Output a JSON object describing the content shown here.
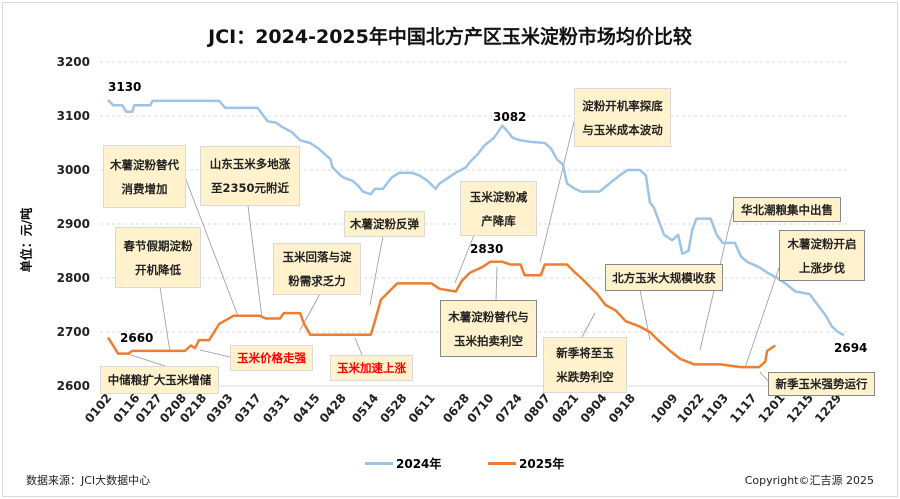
{
  "chart_data": {
    "type": "line",
    "title": "JCI：2024-2025年中国北方产区玉米淀粉市场均价比较",
    "ylabel": "单位：元/吨",
    "ylim": [
      2600,
      3200
    ],
    "yticks": [
      2600,
      2700,
      2800,
      2900,
      3000,
      3100,
      3200
    ],
    "xlim": [
      2,
      366
    ],
    "xticks": [
      {
        "label": "0102",
        "day": 2
      },
      {
        "label": "0116",
        "day": 16
      },
      {
        "label": "0127",
        "day": 27
      },
      {
        "label": "0208",
        "day": 39
      },
      {
        "label": "0218",
        "day": 49
      },
      {
        "label": "0303",
        "day": 62
      },
      {
        "label": "0317",
        "day": 76
      },
      {
        "label": "0331",
        "day": 90
      },
      {
        "label": "0415",
        "day": 105
      },
      {
        "label": "0428",
        "day": 118
      },
      {
        "label": "0514",
        "day": 134
      },
      {
        "label": "0528",
        "day": 148
      },
      {
        "label": "0611",
        "day": 162
      },
      {
        "label": "0628",
        "day": 179
      },
      {
        "label": "0710",
        "day": 191
      },
      {
        "label": "0724",
        "day": 205
      },
      {
        "label": "0807",
        "day": 219
      },
      {
        "label": "0821",
        "day": 233
      },
      {
        "label": "0904",
        "day": 247
      },
      {
        "label": "0918",
        "day": 261
      },
      {
        "label": "1009",
        "day": 282
      },
      {
        "label": "1022",
        "day": 295
      },
      {
        "label": "1103",
        "day": 307
      },
      {
        "label": "1117",
        "day": 321
      },
      {
        "label": "1201",
        "day": 335
      },
      {
        "label": "1215",
        "day": 349
      },
      {
        "label": "1229",
        "day": 363
      }
    ],
    "series": [
      {
        "name": "2024年",
        "color": "#9dc3e6",
        "points": [
          [
            2,
            3130
          ],
          [
            4.5,
            3120
          ],
          [
            9,
            3120
          ],
          [
            11,
            3108
          ],
          [
            14,
            3108
          ],
          [
            15,
            3120
          ],
          [
            23,
            3120
          ],
          [
            24,
            3128
          ],
          [
            57,
            3128
          ],
          [
            60,
            3115
          ],
          [
            76,
            3115
          ],
          [
            78,
            3105
          ],
          [
            81,
            3090
          ],
          [
            85,
            3088
          ],
          [
            88,
            3080
          ],
          [
            93,
            3070
          ],
          [
            97,
            3055
          ],
          [
            102,
            3050
          ],
          [
            106,
            3040
          ],
          [
            109,
            3030
          ],
          [
            112,
            3020
          ],
          [
            113,
            3005
          ],
          [
            117,
            2990
          ],
          [
            119,
            2985
          ],
          [
            123,
            2980
          ],
          [
            126,
            2970
          ],
          [
            128,
            2960
          ],
          [
            132,
            2955
          ],
          [
            134,
            2965
          ],
          [
            138,
            2965
          ],
          [
            142,
            2985
          ],
          [
            146,
            2995
          ],
          [
            152,
            2995
          ],
          [
            156,
            2990
          ],
          [
            160,
            2980
          ],
          [
            164,
            2965
          ],
          [
            166,
            2975
          ],
          [
            170,
            2985
          ],
          [
            174,
            2995
          ],
          [
            179,
            3005
          ],
          [
            181,
            3015
          ],
          [
            185,
            3030
          ],
          [
            188,
            3045
          ],
          [
            193,
            3060
          ],
          [
            197,
            3082
          ],
          [
            200,
            3070
          ],
          [
            202,
            3060
          ],
          [
            206,
            3055
          ],
          [
            211,
            3052
          ],
          [
            218,
            3050
          ],
          [
            221,
            3040
          ],
          [
            224,
            3020
          ],
          [
            227,
            3010
          ],
          [
            229,
            2975
          ],
          [
            233,
            2965
          ],
          [
            236,
            2960
          ],
          [
            245,
            2960
          ],
          [
            250,
            2975
          ],
          [
            255,
            2990
          ],
          [
            259,
            3000
          ],
          [
            265,
            3000
          ],
          [
            268,
            2990
          ],
          [
            270,
            2940
          ],
          [
            272,
            2930
          ],
          [
            275,
            2900
          ],
          [
            277,
            2880
          ],
          [
            281,
            2870
          ],
          [
            284,
            2880
          ],
          [
            286,
            2845
          ],
          [
            289,
            2850
          ],
          [
            291,
            2890
          ],
          [
            293,
            2910
          ],
          [
            300,
            2910
          ],
          [
            303,
            2880
          ],
          [
            306,
            2865
          ],
          [
            312,
            2865
          ],
          [
            315,
            2840
          ],
          [
            318,
            2830
          ],
          [
            324,
            2820
          ],
          [
            328,
            2810
          ],
          [
            333,
            2800
          ],
          [
            337,
            2790
          ],
          [
            342,
            2775
          ],
          [
            349,
            2770
          ],
          [
            353,
            2750
          ],
          [
            357,
            2730
          ],
          [
            360,
            2710
          ],
          [
            363,
            2700
          ],
          [
            366,
            2694
          ]
        ]
      },
      {
        "name": "2025年",
        "color": "#ed7d31",
        "points": [
          [
            2,
            2690
          ],
          [
            4.5,
            2675
          ],
          [
            7,
            2660
          ],
          [
            12,
            2660
          ],
          [
            14,
            2665
          ],
          [
            40,
            2665
          ],
          [
            43,
            2675
          ],
          [
            45,
            2670
          ],
          [
            47,
            2685
          ],
          [
            52,
            2685
          ],
          [
            57,
            2715
          ],
          [
            64,
            2730
          ],
          [
            77,
            2730
          ],
          [
            80,
            2725
          ],
          [
            87,
            2725
          ],
          [
            89,
            2735
          ],
          [
            97,
            2735
          ],
          [
            99,
            2715
          ],
          [
            102,
            2695
          ],
          [
            132,
            2695
          ],
          [
            134,
            2720
          ],
          [
            137,
            2760
          ],
          [
            141,
            2775
          ],
          [
            145,
            2790
          ],
          [
            162,
            2790
          ],
          [
            166,
            2780
          ],
          [
            174,
            2775
          ],
          [
            177,
            2795
          ],
          [
            181,
            2810
          ],
          [
            187,
            2820
          ],
          [
            191,
            2830
          ],
          [
            197,
            2830
          ],
          [
            201,
            2825
          ],
          [
            206,
            2825
          ],
          [
            208,
            2805
          ],
          [
            216,
            2805
          ],
          [
            218,
            2825
          ],
          [
            229,
            2825
          ],
          [
            233,
            2810
          ],
          [
            236,
            2800
          ],
          [
            240,
            2785
          ],
          [
            244,
            2770
          ],
          [
            248,
            2750
          ],
          [
            253,
            2740
          ],
          [
            258,
            2720
          ],
          [
            265,
            2710
          ],
          [
            270,
            2700
          ],
          [
            274,
            2685
          ],
          [
            280,
            2665
          ],
          [
            285,
            2650
          ],
          [
            292,
            2640
          ],
          [
            305,
            2640
          ],
          [
            315,
            2635
          ],
          [
            324,
            2635
          ],
          [
            327,
            2645
          ],
          [
            328,
            2665
          ],
          [
            332,
            2675
          ]
        ]
      }
    ],
    "value_labels": [
      {
        "text": "3130",
        "color": "#ff0000"
      },
      {
        "text": "2660",
        "color": "#00b050"
      },
      {
        "text": "3082",
        "color": "#ff0000"
      },
      {
        "text": "2830",
        "color": "#ff0000"
      },
      {
        "text": "2694",
        "color": "#00b050"
      }
    ],
    "annotations": [
      "木薯淀粉替代\n消费增加",
      "山东玉米多地涨\n至2350元附近",
      "春节假期淀粉\n开机降低",
      "玉米回落与淀\n粉需求乏力",
      "木薯淀粉反弹",
      "玉米淀粉减\n产降库",
      "淀粉开机率探底\n与玉米成本波动",
      "华北潮粮集中出售",
      "木薯淀粉开启\n上涨步伐",
      "北方玉米大规模收获",
      "木薯淀粉替代与\n玉米拍卖利空",
      "新季将至玉\n米跌势利空",
      "新季玉米强势运行",
      "中储粮扩大玉米增储",
      "玉米价格走强",
      "玉米加速上涨"
    ],
    "legend": "bottom"
  },
  "footer": {
    "source": "数据来源：JCI大数据中心",
    "copyright": "Copyright©汇吉源 2025"
  }
}
